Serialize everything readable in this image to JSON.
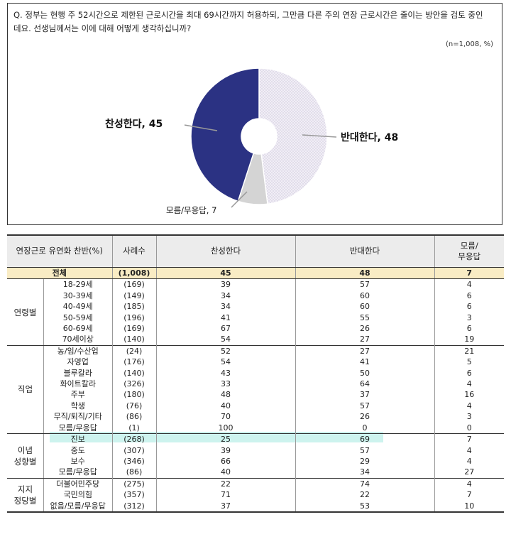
{
  "question": "Q. 정부는 현행 주 52시간으로 제한된 근로시간을 최대 69시간까지 허용하되, 그만큼 다른 주의 연장 근로시간은 줄이는 방안을 검토 중인데요. 선생님께서는 이에 대해 어떻게 생각하십니까?",
  "sample_note": "(n=1,008, %)",
  "colors": {
    "agree": "#2b3283",
    "disagree": "#ece8f2",
    "dontknow": "#d4d4d4",
    "total_row": "#f9ecc4",
    "highlight": "#cdf3ee"
  },
  "chart_data": {
    "type": "pie",
    "donut": true,
    "slices": [
      {
        "label": "찬성한다",
        "value": 45,
        "display": "찬성한다, 45",
        "color": "#2b3283"
      },
      {
        "label": "반대한다",
        "value": 48,
        "display": "반대한다, 48",
        "color": "#ece8f2"
      },
      {
        "label": "모름/무응답",
        "value": 7,
        "display": "모름/무응답, 7",
        "color": "#d4d4d4"
      }
    ]
  },
  "table": {
    "headers": [
      "연장근로 유연화 찬반(%)",
      "사례수",
      "찬성한다",
      "반대한다",
      "모름/\n무응답"
    ],
    "total": {
      "label": "전체",
      "n": "(1,008)",
      "agree": "45",
      "disagree": "48",
      "dk": "7"
    },
    "groups": [
      {
        "name": "연령별",
        "rows": [
          {
            "label": "18-29세",
            "n": "(169)",
            "agree": "39",
            "disagree": "57",
            "dk": "4"
          },
          {
            "label": "30-39세",
            "n": "(149)",
            "agree": "34",
            "disagree": "60",
            "dk": "6"
          },
          {
            "label": "40-49세",
            "n": "(185)",
            "agree": "34",
            "disagree": "60",
            "dk": "6"
          },
          {
            "label": "50-59세",
            "n": "(196)",
            "agree": "41",
            "disagree": "55",
            "dk": "3"
          },
          {
            "label": "60-69세",
            "n": "(169)",
            "agree": "67",
            "disagree": "26",
            "dk": "6"
          },
          {
            "label": "70세이상",
            "n": "(140)",
            "agree": "54",
            "disagree": "27",
            "dk": "19"
          }
        ]
      },
      {
        "name": "직업",
        "rows": [
          {
            "label": "농/임/수산업",
            "n": "(24)",
            "agree": "52",
            "disagree": "27",
            "dk": "21"
          },
          {
            "label": "자영업",
            "n": "(176)",
            "agree": "54",
            "disagree": "41",
            "dk": "5"
          },
          {
            "label": "블루칼라",
            "n": "(140)",
            "agree": "43",
            "disagree": "50",
            "dk": "6"
          },
          {
            "label": "화이트칼라",
            "n": "(326)",
            "agree": "33",
            "disagree": "64",
            "dk": "4"
          },
          {
            "label": "주부",
            "n": "(180)",
            "agree": "48",
            "disagree": "37",
            "dk": "16"
          },
          {
            "label": "학생",
            "n": "(76)",
            "agree": "40",
            "disagree": "57",
            "dk": "4"
          },
          {
            "label": "무직/퇴직/기타",
            "n": "(86)",
            "agree": "70",
            "disagree": "26",
            "dk": "3"
          },
          {
            "label": "모름/무응답",
            "n": "(1)",
            "agree": "100",
            "disagree": "0",
            "dk": "0"
          }
        ]
      },
      {
        "name": "이념\n성향별",
        "rows": [
          {
            "label": "진보",
            "n": "(268)",
            "agree": "25",
            "disagree": "69",
            "dk": "7"
          },
          {
            "label": "중도",
            "n": "(307)",
            "agree": "39",
            "disagree": "57",
            "dk": "4"
          },
          {
            "label": "보수",
            "n": "(346)",
            "agree": "66",
            "disagree": "29",
            "dk": "4"
          },
          {
            "label": "모름/무응답",
            "n": "(86)",
            "agree": "40",
            "disagree": "34",
            "dk": "27"
          }
        ]
      },
      {
        "name": "지지\n정당별",
        "rows": [
          {
            "label": "더불어민주당",
            "n": "(275)",
            "agree": "22",
            "disagree": "74",
            "dk": "4"
          },
          {
            "label": "국민의힘",
            "n": "(357)",
            "agree": "71",
            "disagree": "22",
            "dk": "7"
          },
          {
            "label": "없음/모름/무응답",
            "n": "(312)",
            "agree": "37",
            "disagree": "53",
            "dk": "10"
          }
        ]
      }
    ]
  }
}
